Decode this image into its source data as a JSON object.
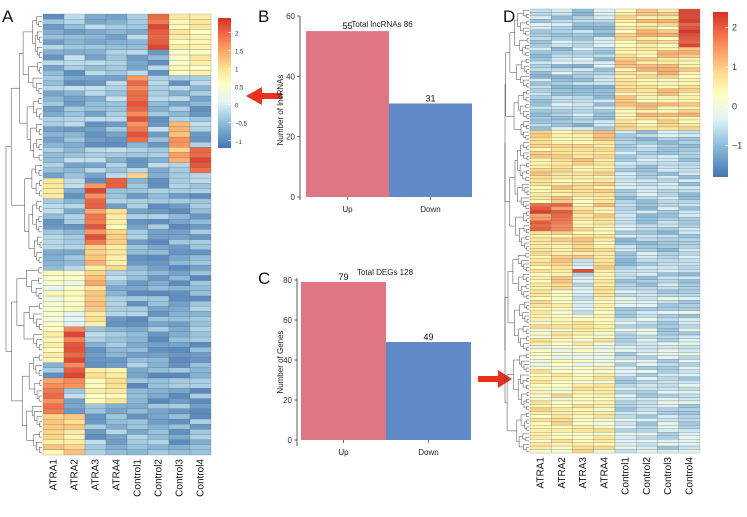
{
  "chart_data": [
    {
      "type": "heatmap",
      "panel_label": "A",
      "columns": [
        "ATRA1",
        "ATRA2",
        "ATRA3",
        "ATRA4",
        "Control1",
        "Control2",
        "Control3",
        "Control4"
      ],
      "row_count": 86,
      "dendrogram": "rows",
      "colorbar": {
        "ticks": [
          2,
          1.5,
          1,
          0.5,
          0,
          -0.5,
          -1
        ],
        "tick_labels": [
          "2",
          "1.5",
          "1",
          "0.5",
          "0",
          "−0.5",
          "−1"
        ],
        "range": [
          -1.2,
          2.4
        ],
        "colors": [
          "#4575b4",
          "#91bfdb",
          "#e0f3f8",
          "#ffffbf",
          "#fee090",
          "#fc8d59",
          "#d73027"
        ]
      },
      "annotation": "red arrow pointing to colorbar"
    },
    {
      "type": "bar",
      "panel_label": "B",
      "title": "Total lncRNAs 86",
      "categories": [
        "Up",
        "Down"
      ],
      "values": [
        55,
        31
      ],
      "data_labels": [
        "55",
        "31"
      ],
      "xlabel": "",
      "ylabel": "Number of lncRNAs",
      "ylim": [
        0,
        60
      ],
      "yticks": [
        0,
        20,
        40,
        60
      ],
      "colors": [
        "#e07583",
        "#5f8ac7"
      ]
    },
    {
      "type": "bar",
      "panel_label": "C",
      "title": "Total DEGs 128",
      "categories": [
        "Up",
        "Down"
      ],
      "values": [
        79,
        49
      ],
      "data_labels": [
        "79",
        "49"
      ],
      "xlabel": "",
      "ylabel": "Number of Genes",
      "ylim": [
        0,
        80
      ],
      "yticks": [
        0,
        20,
        40,
        60,
        80
      ],
      "colors": [
        "#e07583",
        "#5f8ac7"
      ],
      "annotation": "red arrow pointing right to panel D"
    },
    {
      "type": "heatmap",
      "panel_label": "D",
      "columns": [
        "ATRA1",
        "ATRA2",
        "ATRA3",
        "ATRA4",
        "Control1",
        "Control2",
        "Control3",
        "Control4"
      ],
      "row_count": 128,
      "dendrogram": "rows",
      "colorbar": {
        "ticks": [
          2,
          1,
          0,
          -1
        ],
        "tick_labels": [
          "2",
          "1",
          "0",
          "−1"
        ],
        "range": [
          -1.8,
          2.4
        ],
        "colors": [
          "#4575b4",
          "#91bfdb",
          "#e0f3f8",
          "#ffffbf",
          "#fee090",
          "#fc8d59",
          "#d73027"
        ]
      }
    }
  ]
}
